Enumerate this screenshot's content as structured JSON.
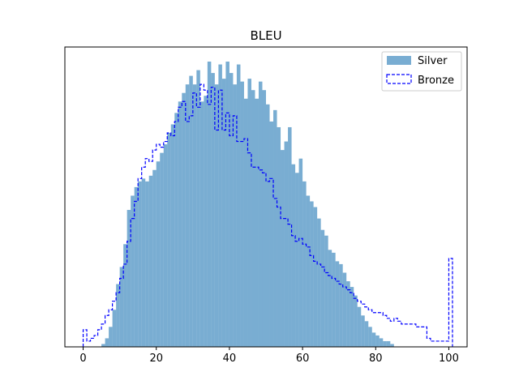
{
  "chart_data": {
    "type": "histogram",
    "title": "BLEU",
    "xlabel": "",
    "ylabel": "",
    "xlim": [
      -5,
      105
    ],
    "ylim": [
      0,
      1.0
    ],
    "x_ticks": [
      0,
      20,
      40,
      60,
      80,
      100
    ],
    "y_ticks_visible": false,
    "grid": false,
    "legend": {
      "placement": "top-right"
    },
    "bin_width": 1,
    "series": [
      {
        "name": "Silver",
        "style": "filled",
        "color": "#1f77b4",
        "alpha": 0.6,
        "bin_start": 5,
        "density": [
          0.01,
          0.03,
          0.07,
          0.13,
          0.22,
          0.28,
          0.36,
          0.48,
          0.53,
          0.56,
          0.58,
          0.59,
          0.58,
          0.6,
          0.62,
          0.65,
          0.68,
          0.71,
          0.75,
          0.78,
          0.82,
          0.86,
          0.89,
          0.92,
          0.95,
          0.92,
          0.97,
          0.86,
          0.88,
          1.0,
          0.96,
          0.92,
          0.99,
          0.94,
          1.0,
          0.96,
          0.92,
          0.99,
          0.93,
          0.87,
          0.94,
          0.9,
          0.87,
          0.93,
          0.9,
          0.85,
          0.79,
          0.83,
          0.77,
          0.69,
          0.72,
          0.77,
          0.64,
          0.61,
          0.66,
          0.58,
          0.53,
          0.51,
          0.49,
          0.45,
          0.41,
          0.39,
          0.34,
          0.33,
          0.3,
          0.29,
          0.26,
          0.23,
          0.21,
          0.18,
          0.14,
          0.11,
          0.09,
          0.07,
          0.05,
          0.04,
          0.03,
          0.02,
          0.02,
          0.01
        ]
      },
      {
        "name": "Bronze",
        "style": "step",
        "color": "#0000ff",
        "dash": true,
        "bin_start": 0,
        "density": [
          0.06,
          0.02,
          0.03,
          0.04,
          0.06,
          0.08,
          0.11,
          0.13,
          0.16,
          0.19,
          0.24,
          0.29,
          0.37,
          0.45,
          0.51,
          0.59,
          0.63,
          0.66,
          0.65,
          0.69,
          0.71,
          0.7,
          0.72,
          0.75,
          0.74,
          0.79,
          0.84,
          0.86,
          0.79,
          0.81,
          0.89,
          0.84,
          0.92,
          0.9,
          0.85,
          0.91,
          0.76,
          0.9,
          0.76,
          0.82,
          0.74,
          0.81,
          0.72,
          0.72,
          0.73,
          0.68,
          0.63,
          0.63,
          0.62,
          0.61,
          0.58,
          0.59,
          0.52,
          0.49,
          0.45,
          0.45,
          0.43,
          0.39,
          0.37,
          0.38,
          0.36,
          0.35,
          0.32,
          0.3,
          0.29,
          0.28,
          0.26,
          0.25,
          0.24,
          0.23,
          0.22,
          0.21,
          0.2,
          0.19,
          0.17,
          0.16,
          0.15,
          0.14,
          0.13,
          0.12,
          0.12,
          0.12,
          0.11,
          0.1,
          0.09,
          0.1,
          0.09,
          0.08,
          0.08,
          0.08,
          0.08,
          0.07,
          0.07,
          0.07,
          0.03,
          0.02,
          0.02,
          0.02,
          0.02,
          0.02,
          0.31
        ]
      }
    ]
  }
}
